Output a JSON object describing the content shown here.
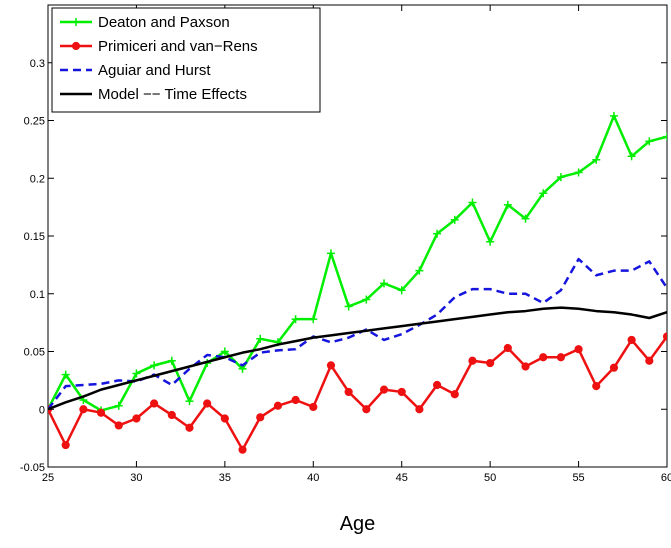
{
  "chart_data": {
    "type": "line",
    "xlabel": "Age",
    "ylabel": "",
    "title": "",
    "xlim": [
      25,
      60
    ],
    "ylim": [
      -0.05,
      0.35
    ],
    "xticks": [
      25,
      30,
      35,
      40,
      45,
      50,
      55,
      60
    ],
    "yticks": [
      -0.05,
      0,
      0.05,
      0.1,
      0.15,
      0.2,
      0.25,
      0.3
    ],
    "xtick_labels": [
      "25",
      "30",
      "35",
      "40",
      "45",
      "50",
      "55",
      "60"
    ],
    "ytick_labels": [
      "-0.05",
      "0",
      "0.05",
      "0.1",
      "0.15",
      "0.2",
      "0.25",
      "0.3"
    ],
    "grid": false,
    "legend_position": "top-left",
    "x": [
      25,
      26,
      27,
      28,
      29,
      30,
      31,
      32,
      33,
      34,
      35,
      36,
      37,
      38,
      39,
      40,
      41,
      42,
      43,
      44,
      45,
      46,
      47,
      48,
      49,
      50,
      51,
      52,
      53,
      54,
      55,
      56,
      57,
      58,
      59,
      60
    ],
    "series": [
      {
        "name": "Deaton and Paxson",
        "color": "#00ee00",
        "style": "solid",
        "marker": "plus",
        "values": [
          0,
          0.03,
          0.008,
          -0.001,
          0.003,
          0.031,
          0.038,
          0.042,
          0.007,
          0.04,
          0.05,
          0.035,
          0.061,
          0.058,
          0.078,
          0.078,
          0.135,
          0.089,
          0.095,
          0.109,
          0.103,
          0.12,
          0.152,
          0.164,
          0.179,
          0.145,
          0.177,
          0.165,
          0.187,
          0.201,
          0.205,
          0.216,
          0.254,
          0.219,
          0.232,
          0.236
        ]
      },
      {
        "name": "Primiceri and van−Rens",
        "color": "#ee1111",
        "style": "solid",
        "marker": "dot",
        "values": [
          0,
          -0.031,
          0,
          -0.003,
          -0.014,
          -0.008,
          0.005,
          -0.005,
          -0.016,
          0.005,
          -0.008,
          -0.035,
          -0.007,
          0.003,
          0.008,
          0.002,
          0.038,
          0.015,
          0,
          0.017,
          0.015,
          0,
          0.021,
          0.013,
          0.042,
          0.04,
          0.053,
          0.037,
          0.045,
          0.045,
          0.052,
          0.02,
          0.036,
          0.06,
          0.042,
          0.063
        ]
      },
      {
        "name": "Aguiar and Hurst",
        "color": "#1515dd",
        "style": "dashed",
        "marker": "none",
        "values": [
          0,
          0.02,
          0.021,
          0.022,
          0.025,
          0.024,
          0.03,
          0.021,
          0.035,
          0.047,
          0.045,
          0.038,
          0.049,
          0.051,
          0.052,
          0.063,
          0.058,
          0.062,
          0.069,
          0.06,
          0.065,
          0.073,
          0.082,
          0.097,
          0.104,
          0.104,
          0.1,
          0.1,
          0.092,
          0.103,
          0.13,
          0.116,
          0.12,
          0.12,
          0.128,
          0.105
        ]
      },
      {
        "name": "Model −− Time Effects",
        "color": "#000000",
        "style": "solid",
        "marker": "none",
        "values": [
          0,
          0.006,
          0.011,
          0.017,
          0.021,
          0.025,
          0.029,
          0.033,
          0.037,
          0.041,
          0.045,
          0.049,
          0.052,
          0.056,
          0.059,
          0.062,
          0.064,
          0.066,
          0.068,
          0.07,
          0.072,
          0.074,
          0.076,
          0.078,
          0.08,
          0.082,
          0.084,
          0.085,
          0.087,
          0.088,
          0.087,
          0.085,
          0.084,
          0.082,
          0.079,
          0.084
        ]
      }
    ]
  }
}
